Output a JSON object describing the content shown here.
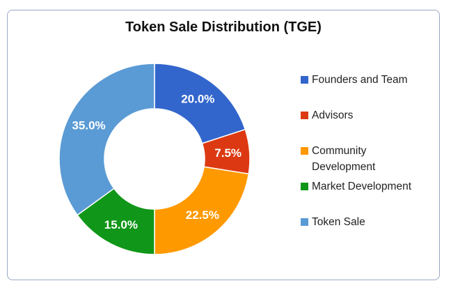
{
  "chart_data": {
    "type": "pie",
    "variant": "donut",
    "title": "Token Sale Distribution (TGE)",
    "legend_position": "right",
    "slices": [
      {
        "name": "Founders and Team",
        "value": 20.0,
        "label": "20.0%",
        "color": "#3366cc"
      },
      {
        "name": "Advisors",
        "value": 7.5,
        "label": "7.5%",
        "color": "#dc3912"
      },
      {
        "name": "Community Development",
        "value": 22.5,
        "label": "22.5%",
        "color": "#ff9900"
      },
      {
        "name": "Market Development",
        "value": 15.0,
        "label": "15.0%",
        "color": "#109618"
      },
      {
        "name": "Token Sale",
        "value": 35.0,
        "label": "35.0%",
        "color": "#5b9bd5"
      }
    ]
  }
}
